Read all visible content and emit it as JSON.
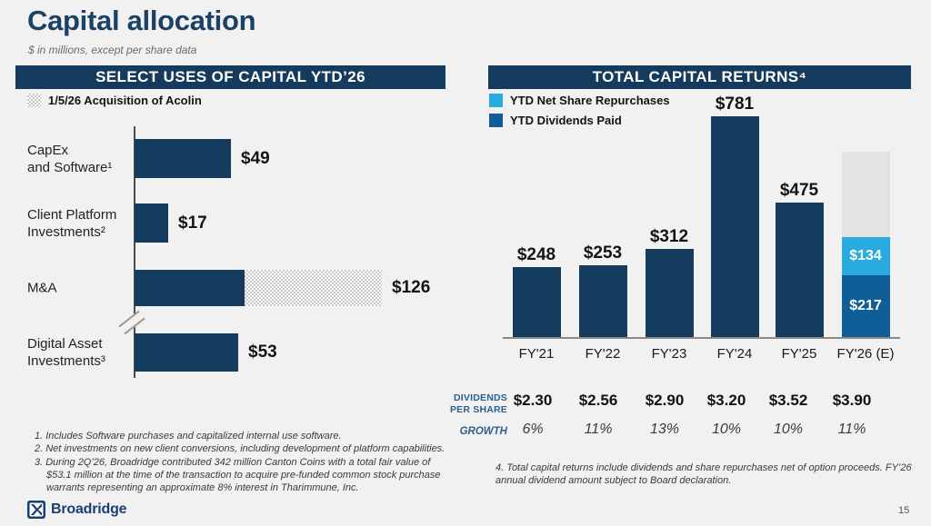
{
  "slide": {
    "title": "Capital allocation",
    "subtitle": "$ in millions, except per share data",
    "brand": "Broadridge",
    "page_number": "15"
  },
  "colors": {
    "navy": "#143A5D",
    "dividends_blue": "#0F5E98",
    "repurchases_cyan": "#29ABE2",
    "estimate_gray": "#E3E3E3",
    "hatch_gray": "#C7C7C7",
    "table_label_blue": "#2E608C",
    "header_bg": "#143A5D"
  },
  "left_panel": {
    "header": "SELECT USES OF CAPITAL YTD’26",
    "legend_label": "1/5/26 Acquisition of Acolin",
    "footnotes": [
      "1. Includes Software purchases and capitalized internal use software.",
      "2. Net investments on new client conversions, including development of platform capabilities.",
      "3. During 2Q’26, Broadridge contributed 342 million Canton Coins with a total fair value of $53.1 million at the time of the transaction to acquire pre-funded common stock purchase warrants representing an approximate 8% interest in Tharimmune, Inc."
    ]
  },
  "right_panel": {
    "header": "TOTAL CAPITAL RETURNS⁴",
    "legend": [
      {
        "label": "YTD Net Share Repurchases",
        "color": "#29ABE2"
      },
      {
        "label": "YTD Dividends Paid",
        "color": "#0F5E98"
      }
    ],
    "table": {
      "dividends_label": "DIVIDENDS PER SHARE",
      "growth_label": "GROWTH",
      "dividends_values": [
        "$2.30",
        "$2.56",
        "$2.90",
        "$3.20",
        "$3.52",
        "$3.90"
      ],
      "growth_values": [
        "6%",
        "11%",
        "13%",
        "10%",
        "10%",
        "11%"
      ]
    },
    "footnote": "4. Total capital returns include dividends and share repurchases net of option proceeds. FY’26 annual dividend amount subject to Board declaration."
  },
  "chart_data": [
    {
      "type": "bar",
      "orientation": "horizontal",
      "title": "SELECT USES OF CAPITAL YTD'26",
      "units": "$ millions",
      "xlim": [
        0,
        140
      ],
      "legend": "Hatched pattern = 1/5/26 Acquisition of Acolin",
      "axis_break": "axis break between M&A and Digital Asset Investments",
      "bars": [
        {
          "category_lines": [
            "CapEx",
            "and Software¹"
          ],
          "value": 49,
          "label": "$49",
          "segments": [
            {
              "kind": "solid",
              "value": 49
            }
          ]
        },
        {
          "category_lines": [
            "Client Platform",
            "Investments²"
          ],
          "value": 17,
          "label": "$17",
          "segments": [
            {
              "kind": "solid",
              "value": 17
            }
          ]
        },
        {
          "category_lines": [
            "M&A"
          ],
          "value": 126,
          "label": "$126",
          "segments": [
            {
              "kind": "solid",
              "value": 56
            },
            {
              "kind": "hatch",
              "value": 70
            }
          ]
        },
        {
          "category_lines": [
            "Digital Asset",
            "Investments³"
          ],
          "value": 53,
          "label": "$53",
          "segments": [
            {
              "kind": "solid",
              "value": 53
            }
          ]
        }
      ]
    },
    {
      "type": "bar",
      "orientation": "vertical",
      "stacked": true,
      "title": "TOTAL CAPITAL RETURNS⁴",
      "units": "$ millions",
      "ylim": [
        0,
        800
      ],
      "categories": [
        "FY'21",
        "FY'22",
        "FY'23",
        "FY'24",
        "FY'25",
        "FY'26 (E)"
      ],
      "bars": [
        {
          "category": "FY'21",
          "total": 248,
          "label": "$248",
          "segments": [
            {
              "name": "total capital returns",
              "value": 248,
              "color": "#143A5D"
            }
          ]
        },
        {
          "category": "FY'22",
          "total": 253,
          "label": "$253",
          "segments": [
            {
              "name": "total capital returns",
              "value": 253,
              "color": "#143A5D"
            }
          ]
        },
        {
          "category": "FY'23",
          "total": 312,
          "label": "$312",
          "segments": [
            {
              "name": "total capital returns",
              "value": 312,
              "color": "#143A5D"
            }
          ]
        },
        {
          "category": "FY'24",
          "total": 781,
          "label": "$781",
          "segments": [
            {
              "name": "total capital returns",
              "value": 781,
              "color": "#143A5D"
            }
          ]
        },
        {
          "category": "FY'25",
          "total": 475,
          "label": "$475",
          "segments": [
            {
              "name": "total capital returns",
              "value": 475,
              "color": "#143A5D"
            }
          ]
        },
        {
          "category": "FY'26 (E)",
          "segments": [
            {
              "name": "YTD Dividends Paid",
              "value": 217,
              "label": "$217",
              "color": "#0F5E98"
            },
            {
              "name": "YTD Net Share Repurchases",
              "value": 134,
              "label": "$134",
              "color": "#29ABE2"
            },
            {
              "name": "estimated remainder (unlabeled)",
              "value": 301,
              "color": "#E3E3E3"
            }
          ]
        }
      ]
    }
  ]
}
